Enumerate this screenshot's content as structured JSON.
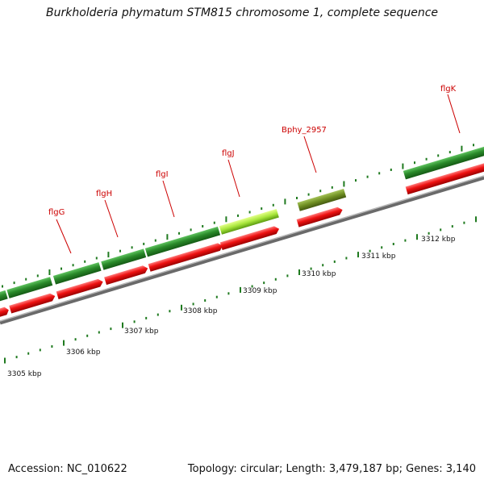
{
  "title": "Burkholderia phymatum STM815 chromosome 1, complete sequence",
  "footer": {
    "accession": "Accession: NC_010622",
    "topology": "Topology: circular; Length: 3,479,187 bp; Genes: 3,140"
  },
  "scale_labels": [
    "3305 kbp",
    "3306 kbp",
    "3307 kbp",
    "3308 kbp",
    "3309 kbp",
    "3310 kbp",
    "3311 kbp",
    "3312 kbp"
  ],
  "gene_labels": [
    "flgG",
    "flgH",
    "flgI",
    "flgJ",
    "Bphy_2957",
    "flgK"
  ],
  "colors": {
    "cds_forward": "#2a8a2a",
    "cds_highlight": "#a8e63c",
    "cds_olive": "#6f8f22",
    "gene_red": "#ee1111",
    "backbone": "#8a8a8a",
    "tick": "#1f7a1f",
    "label_red": "#cc0000"
  }
}
